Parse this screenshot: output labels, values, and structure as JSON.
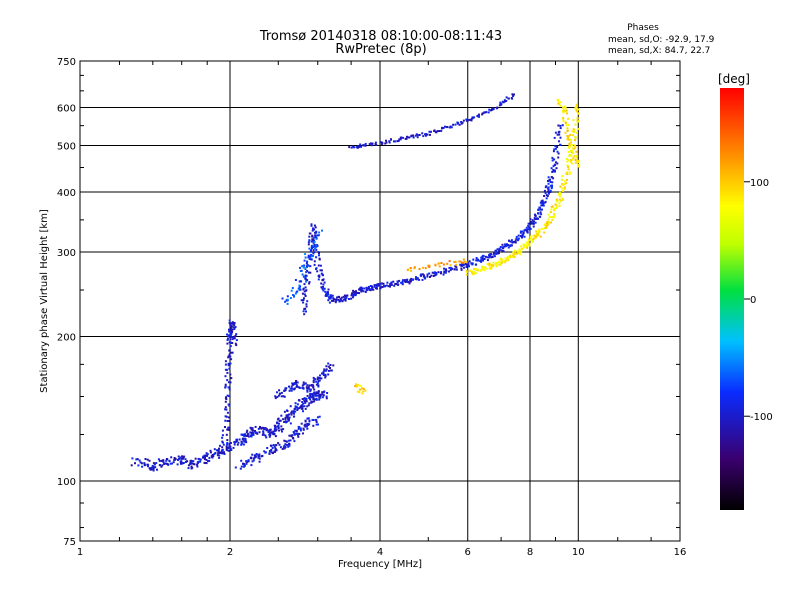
{
  "chart_data": {
    "type": "scatter",
    "title": "Tromsø 20140318 08:10:00-08:11:43",
    "subtitle": "RwPretec (8p)",
    "xlabel": "Frequency [MHz]",
    "ylabel": "Stationary phase Virtual Height [km]",
    "xscale": "log",
    "yscale": "log",
    "xlim": [
      1,
      16
    ],
    "ylim": [
      75,
      750
    ],
    "xticks": [
      1,
      2,
      4,
      6,
      8,
      10,
      16
    ],
    "xtick_labels": [
      "1",
      "2",
      "4",
      "6",
      "8",
      "10",
      "16"
    ],
    "yticks": [
      75,
      100,
      200,
      300,
      400,
      500,
      600,
      750
    ],
    "ytick_labels": [
      "75",
      "100",
      "200",
      "300",
      "400",
      "500",
      "600",
      "750"
    ],
    "grid": true,
    "phase_info": {
      "heading": "Phases",
      "line1": "mean, sd,O: -92.9, 17.9",
      "line2": "mean, sd,X:  84.7, 22.7"
    },
    "colorbar": {
      "label": "[deg]",
      "range": [
        -180,
        180
      ],
      "ticks": [
        100,
        0,
        -100
      ],
      "tick_labels": [
        "100",
        "0",
        "-100"
      ]
    },
    "traces": [
      {
        "f": [
          1.3,
          1.4,
          1.5,
          1.6,
          1.7,
          1.8,
          1.9,
          2.0,
          2.1,
          2.2,
          2.3,
          2.4,
          2.5,
          2.6,
          2.7,
          2.8,
          2.9,
          3.0,
          3.1
        ],
        "h": [
          110,
          107,
          110,
          111,
          108,
          112,
          115,
          118,
          122,
          126,
          128,
          125,
          130,
          135,
          140,
          145,
          148,
          150,
          152
        ],
        "phase": -100,
        "spread": 0.05,
        "n": 3
      },
      {
        "f": [
          1.95,
          1.97,
          1.99,
          2.0,
          2.02,
          2.04
        ],
        "h": [
          115,
          140,
          170,
          200,
          215,
          190
        ],
        "phase": -100,
        "spread": 0.03,
        "n": 3
      },
      {
        "f": [
          2.1,
          2.2,
          2.3,
          2.4,
          2.5,
          2.6,
          2.7,
          2.8,
          2.9,
          3.0
        ],
        "h": [
          108,
          110,
          112,
          115,
          118,
          120,
          125,
          130,
          133,
          135
        ],
        "phase": -100,
        "spread": 0.05,
        "n": 2
      },
      {
        "f": [
          2.5,
          2.6,
          2.7,
          2.8,
          2.9,
          3.0,
          3.1,
          3.2
        ],
        "h": [
          150,
          155,
          160,
          158,
          155,
          162,
          168,
          175
        ],
        "phase": -100,
        "spread": 0.04,
        "n": 2
      },
      {
        "f": [
          2.8,
          2.85,
          2.9,
          2.95,
          3.0,
          3.1,
          3.2,
          3.4,
          3.6,
          3.8,
          4.0,
          4.3,
          4.6,
          5.0,
          5.5,
          6.0
        ],
        "h": [
          225,
          260,
          300,
          340,
          280,
          250,
          238,
          240,
          248,
          252,
          255,
          258,
          262,
          268,
          275,
          282
        ],
        "phase": -100,
        "spread": 0.03,
        "n": 3
      },
      {
        "f": [
          2.6,
          2.7,
          2.8,
          2.9,
          3.0
        ],
        "h": [
          235,
          250,
          270,
          300,
          330
        ],
        "phase": -70,
        "spread": 0.05,
        "n": 2
      },
      {
        "f": [
          6.0,
          6.4,
          6.8,
          7.2,
          7.6,
          8.0,
          8.3,
          8.6,
          8.8,
          9.0,
          9.2
        ],
        "h": [
          282,
          290,
          298,
          310,
          322,
          340,
          360,
          390,
          420,
          470,
          560
        ],
        "phase": -95,
        "spread": 0.03,
        "n": 3
      },
      {
        "f": [
          6.0,
          6.4,
          6.8,
          7.2,
          7.6,
          8.0,
          8.4,
          8.8,
          9.2,
          9.5,
          9.8,
          10.0
        ],
        "h": [
          272,
          276,
          282,
          290,
          300,
          315,
          330,
          355,
          390,
          440,
          520,
          620
        ],
        "phase": 85,
        "spread": 0.03,
        "n": 3
      },
      {
        "f": [
          4.5,
          4.9,
          5.3,
          5.7,
          6.0
        ],
        "h": [
          275,
          278,
          282,
          285,
          288
        ],
        "phase": 120,
        "spread": 0.03,
        "n": 1
      },
      {
        "f": [
          3.5,
          3.8,
          4.2,
          4.6,
          5.0,
          5.5,
          6.0,
          6.5,
          7.0,
          7.5
        ],
        "h": [
          495,
          502,
          510,
          520,
          530,
          545,
          565,
          585,
          610,
          640
        ],
        "phase": -100,
        "spread": 0.02,
        "n": 2
      },
      {
        "f": [
          3.6,
          3.7
        ],
        "h": [
          158,
          152
        ],
        "phase": 100,
        "spread": 0.03,
        "n": 2
      },
      {
        "f": [
          9.2,
          9.4,
          9.6,
          9.8,
          10.0
        ],
        "h": [
          620,
          580,
          520,
          480,
          450
        ],
        "phase": 90,
        "spread": 0.03,
        "n": 2
      }
    ]
  }
}
